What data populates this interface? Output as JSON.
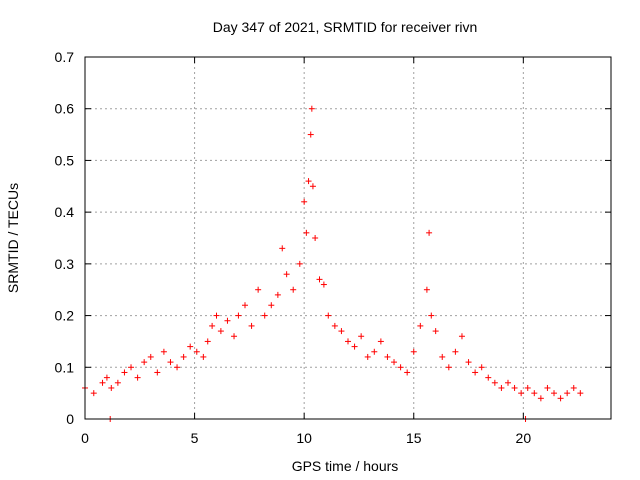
{
  "chart_data": {
    "type": "scatter",
    "title": "Day 347 of 2021, SRMTID for receiver rivn",
    "xlabel": "GPS time / hours",
    "ylabel": "SRMTID / TECUs",
    "xlim": [
      0,
      24
    ],
    "ylim": [
      0,
      0.7
    ],
    "x_ticks": [
      0,
      5,
      10,
      15,
      20
    ],
    "x_tick_labels": [
      "0",
      "5",
      "10",
      "15",
      "20"
    ],
    "y_ticks": [
      0,
      0.1,
      0.2,
      0.3,
      0.4,
      0.5,
      0.6,
      0.7
    ],
    "y_tick_labels": [
      "0",
      "0.1",
      "0.2",
      "0.3",
      "0.4",
      "0.5",
      "0.6",
      "0.7"
    ],
    "grid": true,
    "marker": "+",
    "color": "#ff0000",
    "series": [
      {
        "name": "SRMTID",
        "x": [
          0.0,
          0.4,
          0.8,
          1.0,
          1.2,
          1.5,
          1.8,
          2.1,
          2.4,
          2.7,
          3.0,
          3.3,
          3.6,
          3.9,
          4.2,
          4.5,
          4.8,
          5.1,
          5.4,
          5.6,
          5.8,
          6.0,
          6.2,
          6.5,
          6.8,
          7.0,
          7.3,
          7.6,
          7.9,
          8.2,
          8.5,
          8.8,
          9.0,
          9.2,
          9.5,
          9.8,
          10.0,
          10.1,
          10.2,
          10.3,
          10.35,
          10.4,
          10.5,
          10.7,
          10.9,
          11.1,
          11.4,
          11.7,
          12.0,
          12.3,
          12.6,
          12.9,
          13.2,
          13.5,
          13.8,
          14.1,
          14.4,
          14.7,
          15.0,
          15.3,
          15.6,
          15.7,
          15.8,
          16.0,
          16.3,
          16.6,
          16.9,
          17.2,
          17.5,
          17.8,
          18.1,
          18.4,
          18.7,
          19.0,
          19.3,
          19.6,
          19.9,
          20.2,
          20.5,
          20.8,
          21.1,
          21.4,
          21.7,
          22.0,
          22.3,
          22.6,
          1.15,
          20.1
        ],
        "y": [
          0.06,
          0.05,
          0.07,
          0.08,
          0.06,
          0.07,
          0.09,
          0.1,
          0.08,
          0.11,
          0.12,
          0.09,
          0.13,
          0.11,
          0.1,
          0.12,
          0.14,
          0.13,
          0.12,
          0.15,
          0.18,
          0.2,
          0.17,
          0.19,
          0.16,
          0.2,
          0.22,
          0.18,
          0.25,
          0.2,
          0.22,
          0.24,
          0.33,
          0.28,
          0.25,
          0.3,
          0.42,
          0.36,
          0.46,
          0.55,
          0.6,
          0.45,
          0.35,
          0.27,
          0.26,
          0.2,
          0.18,
          0.17,
          0.15,
          0.14,
          0.16,
          0.12,
          0.13,
          0.15,
          0.12,
          0.11,
          0.1,
          0.09,
          0.13,
          0.18,
          0.25,
          0.36,
          0.2,
          0.17,
          0.12,
          0.1,
          0.13,
          0.16,
          0.11,
          0.09,
          0.1,
          0.08,
          0.07,
          0.06,
          0.07,
          0.06,
          0.05,
          0.06,
          0.05,
          0.04,
          0.06,
          0.05,
          0.04,
          0.05,
          0.06,
          0.05,
          0.0,
          0.0
        ]
      }
    ]
  }
}
